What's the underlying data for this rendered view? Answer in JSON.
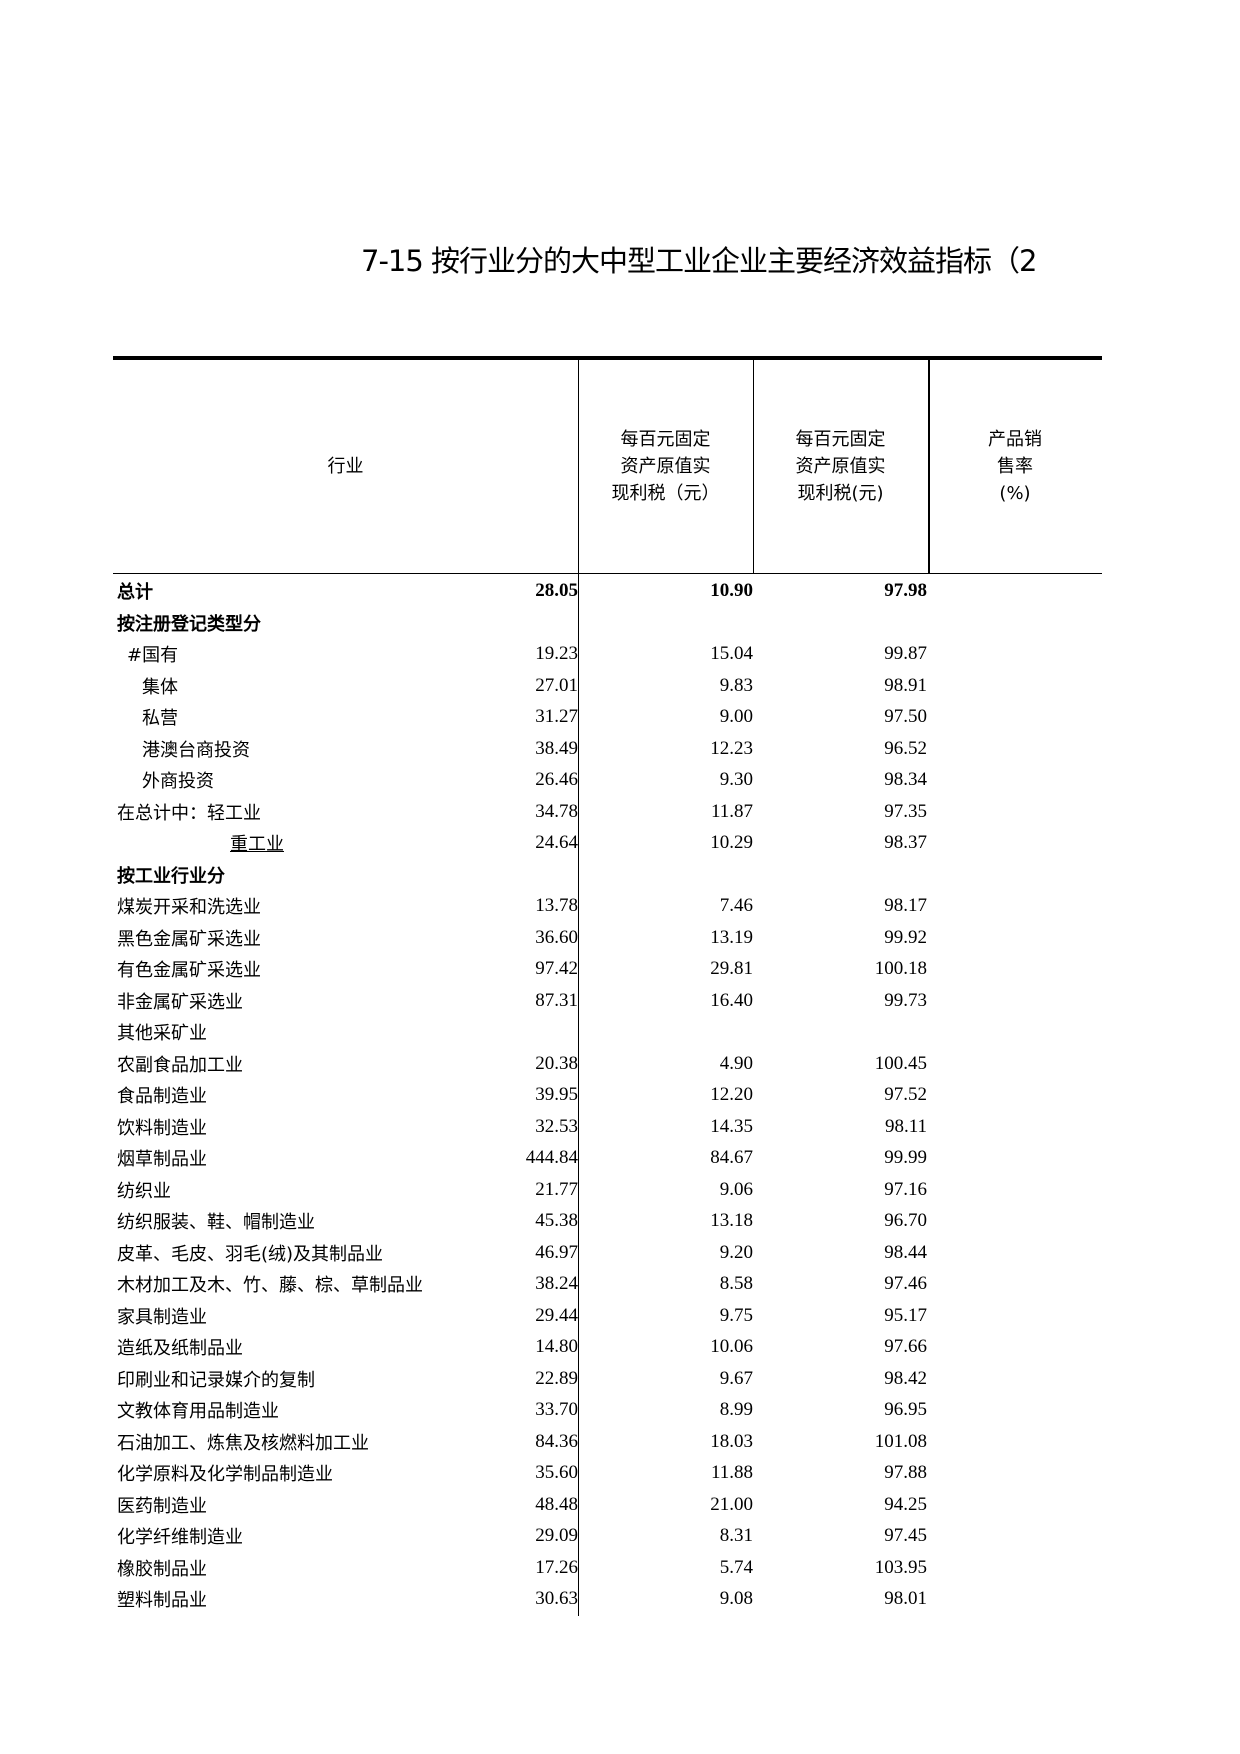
{
  "title": "7-15 按行业分的大中型工业企业主要经济效益指标（2",
  "headers": {
    "industry": "行业",
    "col1": [
      "每百元固定",
      "资产原值实",
      "现利税（元）"
    ],
    "col2": [
      "每百元固定",
      "资产原值实",
      "现利税(元)"
    ],
    "col3": [
      "产品销",
      "售率",
      "(%)"
    ]
  },
  "rows": [
    {
      "label": "总计",
      "v": [
        "28.05",
        "10.90",
        "97.98"
      ],
      "style": "bold"
    },
    {
      "label": "按注册登记类型分",
      "v": [
        "",
        "",
        ""
      ],
      "style": "bold"
    },
    {
      "label": "#国有",
      "v": [
        "19.23",
        "15.04",
        "99.87"
      ],
      "style": "i1"
    },
    {
      "label": "集体",
      "v": [
        "27.01",
        "9.83",
        "98.91"
      ],
      "style": "i2"
    },
    {
      "label": "私营",
      "v": [
        "31.27",
        "9.00",
        "97.50"
      ],
      "style": "i2"
    },
    {
      "label": "港澳台商投资",
      "v": [
        "38.49",
        "12.23",
        "96.52"
      ],
      "style": "i2"
    },
    {
      "label": "外商投资",
      "v": [
        "26.46",
        "9.30",
        "98.34"
      ],
      "style": "i2"
    },
    {
      "label": "在总计中：轻工业",
      "v": [
        "34.78",
        "11.87",
        "97.35"
      ],
      "style": "ul"
    },
    {
      "label": "重工业",
      "v": [
        "24.64",
        "10.29",
        "98.37"
      ],
      "style": "i3"
    },
    {
      "label": "按工业行业分",
      "v": [
        "",
        "",
        ""
      ],
      "style": "bold"
    },
    {
      "label": "煤炭开采和洗选业",
      "v": [
        "13.78",
        "7.46",
        "98.17"
      ]
    },
    {
      "label": "黑色金属矿采选业",
      "v": [
        "36.60",
        "13.19",
        "99.92"
      ]
    },
    {
      "label": "有色金属矿采选业",
      "v": [
        "97.42",
        "29.81",
        "100.18"
      ]
    },
    {
      "label": "非金属矿采选业",
      "v": [
        "87.31",
        "16.40",
        "99.73"
      ]
    },
    {
      "label": "其他采矿业",
      "v": [
        "",
        "",
        ""
      ]
    },
    {
      "label": "农副食品加工业",
      "v": [
        "20.38",
        "4.90",
        "100.45"
      ]
    },
    {
      "label": "食品制造业",
      "v": [
        "39.95",
        "12.20",
        "97.52"
      ]
    },
    {
      "label": "饮料制造业",
      "v": [
        "32.53",
        "14.35",
        "98.11"
      ]
    },
    {
      "label": "烟草制品业",
      "v": [
        "444.84",
        "84.67",
        "99.99"
      ]
    },
    {
      "label": "纺织业",
      "v": [
        "21.77",
        "9.06",
        "97.16"
      ]
    },
    {
      "label": "纺织服装、鞋、帽制造业",
      "v": [
        "45.38",
        "13.18",
        "96.70"
      ]
    },
    {
      "label": "皮革、毛皮、羽毛(绒)及其制品业",
      "v": [
        "46.97",
        "9.20",
        "98.44"
      ]
    },
    {
      "label": "木材加工及木、竹、藤、棕、草制品业",
      "v": [
        "38.24",
        "8.58",
        "97.46"
      ]
    },
    {
      "label": "家具制造业",
      "v": [
        "29.44",
        "9.75",
        "95.17"
      ]
    },
    {
      "label": "造纸及纸制品业",
      "v": [
        "14.80",
        "10.06",
        "97.66"
      ]
    },
    {
      "label": "印刷业和记录媒介的复制",
      "v": [
        "22.89",
        "9.67",
        "98.42"
      ]
    },
    {
      "label": "文教体育用品制造业",
      "v": [
        "33.70",
        "8.99",
        "96.95"
      ]
    },
    {
      "label": "石油加工、炼焦及核燃料加工业",
      "v": [
        "84.36",
        "18.03",
        "101.08"
      ]
    },
    {
      "label": "化学原料及化学制品制造业",
      "v": [
        "35.60",
        "11.88",
        "97.88"
      ]
    },
    {
      "label": "医药制造业",
      "v": [
        "48.48",
        "21.00",
        "94.25"
      ]
    },
    {
      "label": "化学纤维制造业",
      "v": [
        "29.09",
        "8.31",
        "97.45"
      ]
    },
    {
      "label": "橡胶制品业",
      "v": [
        "17.26",
        "5.74",
        "103.95"
      ]
    },
    {
      "label": "塑料制品业",
      "v": [
        "30.63",
        "9.08",
        "98.01"
      ]
    }
  ]
}
